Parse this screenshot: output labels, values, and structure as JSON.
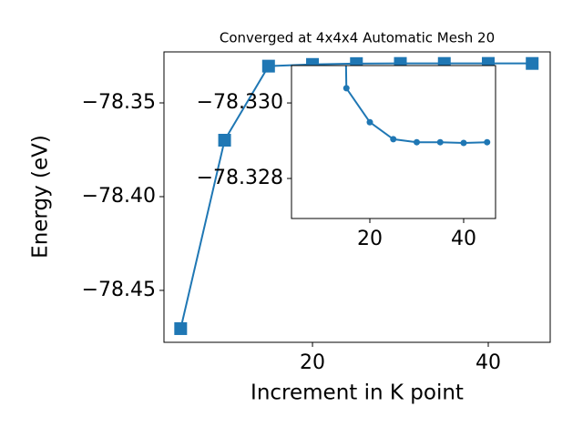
{
  "chart_data": {
    "type": "line",
    "title": "Converged at 4x4x4 Automatic Mesh 20",
    "x_label": "Increment in K point",
    "y_label": "Energy (eV)",
    "x": [
      5,
      10,
      15,
      20,
      25,
      30,
      35,
      40,
      45
    ],
    "series": [
      {
        "color": "#1f77b4",
        "values": [
          -78.4704,
          -78.3699,
          -78.33039,
          -78.32949,
          -78.32904,
          -78.32896,
          -78.32896,
          -78.32894,
          -78.32896
        ]
      }
    ],
    "xlim": [
      3.1,
      47.05
    ],
    "ylim": [
      -78.4777,
      -78.3228
    ],
    "xticks": [
      20,
      40
    ],
    "yticks": [
      {
        "value": -78.45,
        "label": "−78.45"
      },
      {
        "value": -78.4,
        "label": "−78.40"
      },
      {
        "value": -78.35,
        "label": "−78.35"
      }
    ],
    "inset": {
      "xlim": [
        3.3,
        46.8
      ],
      "ylim": [
        -78.32694,
        -78.33099
      ],
      "xticks": [
        20,
        40
      ],
      "yticks": [
        {
          "value": -78.33,
          "label": "−78.330"
        },
        {
          "value": -78.328,
          "label": "−78.328"
        }
      ]
    }
  }
}
